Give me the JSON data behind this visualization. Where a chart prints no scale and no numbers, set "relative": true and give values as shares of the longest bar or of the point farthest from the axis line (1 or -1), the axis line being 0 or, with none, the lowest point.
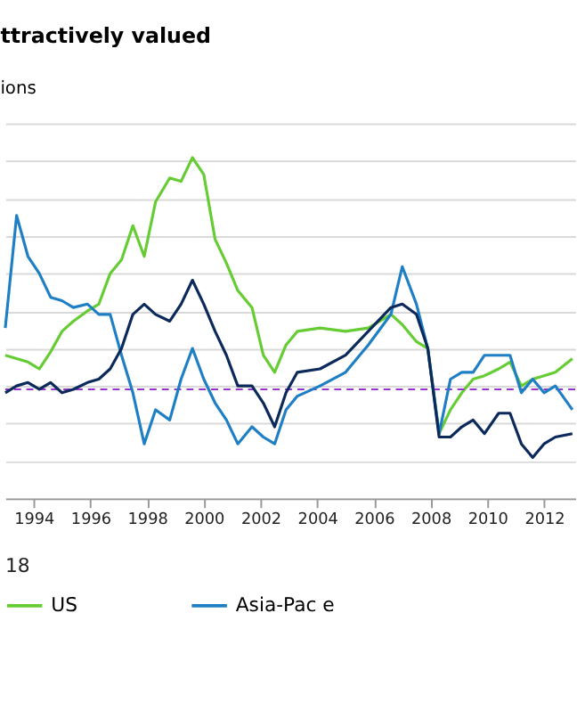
{
  "chart_data": {
    "type": "line",
    "title": "ttractively valued",
    "subtitle": "ions",
    "relative": true,
    "grid": "y",
    "legend": "bottom",
    "line_style": "solid",
    "marker": "none",
    "x": [
      1993.0,
      1993.4,
      1993.8,
      1994.2,
      1994.6,
      1995.0,
      1995.4,
      1995.9,
      1996.3,
      1996.7,
      1997.1,
      1997.5,
      1997.9,
      1998.3,
      1998.8,
      1999.2,
      1999.6,
      2000.0,
      2000.4,
      2000.8,
      2001.2,
      2001.7,
      2002.1,
      2002.5,
      2002.9,
      2003.3,
      2004.1,
      2005.0,
      2005.8,
      2006.6,
      2007.0,
      2007.5,
      2007.9,
      2008.3,
      2008.7,
      2009.1,
      2009.5,
      2009.9,
      2010.4,
      2010.8,
      2011.2,
      2011.6,
      2012.0,
      2012.4,
      2013.0
    ],
    "xlim": [
      1993.0,
      2013.1
    ],
    "xticks": [
      1994,
      1996,
      1998,
      2000,
      2002,
      2004,
      2006,
      2008,
      2010,
      2012
    ],
    "series": [
      {
        "name": "US",
        "color": "#66cc33",
        "values": [
          0.42,
          0.41,
          0.4,
          0.38,
          0.43,
          0.49,
          0.52,
          0.55,
          0.57,
          0.66,
          0.7,
          0.8,
          0.71,
          0.87,
          0.94,
          0.93,
          1.0,
          0.95,
          0.76,
          0.69,
          0.61,
          0.56,
          0.42,
          0.37,
          0.45,
          0.49,
          0.5,
          0.49,
          0.5,
          0.54,
          0.51,
          0.46,
          0.44,
          0.19,
          0.26,
          0.31,
          0.35,
          0.36,
          0.38,
          0.4,
          0.33,
          0.35,
          0.36,
          0.37,
          0.41
        ]
      },
      {
        "name": "Asia-Pac e",
        "color": "#1f7fc4",
        "values": [
          0.5,
          0.83,
          0.71,
          0.66,
          0.59,
          0.58,
          0.56,
          0.57,
          0.54,
          0.54,
          0.42,
          0.31,
          0.16,
          0.26,
          0.23,
          0.35,
          0.44,
          0.35,
          0.28,
          0.23,
          0.16,
          0.21,
          0.18,
          0.16,
          0.26,
          0.3,
          0.33,
          0.37,
          0.45,
          0.54,
          0.68,
          0.57,
          0.44,
          0.19,
          0.35,
          0.37,
          0.37,
          0.42,
          0.42,
          0.42,
          0.31,
          0.35,
          0.31,
          0.33,
          0.26
        ]
      },
      {
        "color": "#0b2a5b",
        "values": [
          0.31,
          0.33,
          0.34,
          0.32,
          0.34,
          0.31,
          0.32,
          0.34,
          0.35,
          0.38,
          0.44,
          0.54,
          0.57,
          0.54,
          0.52,
          0.57,
          0.64,
          0.57,
          0.49,
          0.42,
          0.33,
          0.33,
          0.28,
          0.21,
          0.31,
          0.37,
          0.38,
          0.42,
          0.49,
          0.56,
          0.57,
          0.54,
          0.44,
          0.18,
          0.18,
          0.21,
          0.23,
          0.19,
          0.25,
          0.25,
          0.16,
          0.12,
          0.16,
          0.18,
          0.19
        ]
      }
    ],
    "ref_lines": [
      {
        "axis": "y",
        "value": 0.32,
        "color": "#9933cc",
        "line_style": "dashed"
      }
    ],
    "annotations": [
      "18"
    ]
  }
}
